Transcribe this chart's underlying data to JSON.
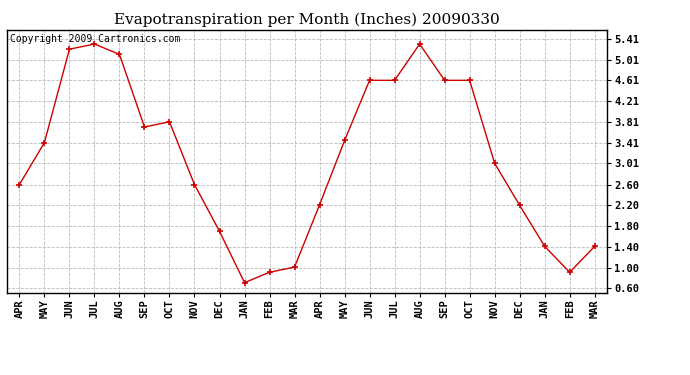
{
  "title": "Evapotranspiration per Month (Inches) 20090330",
  "copyright": "Copyright 2009 Cartronics.com",
  "months": [
    "APR",
    "MAY",
    "JUN",
    "JUL",
    "AUG",
    "SEP",
    "OCT",
    "NOV",
    "DEC",
    "JAN",
    "FEB",
    "MAR",
    "APR",
    "MAY",
    "JUN",
    "JUL",
    "AUG",
    "SEP",
    "OCT",
    "NOV",
    "DEC",
    "JAN",
    "FEB",
    "MAR"
  ],
  "values": [
    2.6,
    3.41,
    5.21,
    5.31,
    5.11,
    3.71,
    3.81,
    2.6,
    1.7,
    0.71,
    0.91,
    1.01,
    2.21,
    3.45,
    4.61,
    4.61,
    5.31,
    4.61,
    4.61,
    3.01,
    2.2,
    1.41,
    0.91,
    1.41
  ],
  "line_color": "#cc0000",
  "marker": "+",
  "marker_size": 4,
  "marker_linewidth": 1.2,
  "yticks": [
    0.6,
    1.0,
    1.4,
    1.8,
    2.2,
    2.6,
    3.01,
    3.41,
    3.81,
    4.21,
    4.61,
    5.01,
    5.41
  ],
  "ylim": [
    0.52,
    5.58
  ],
  "background_color": "#ffffff",
  "grid_color": "#bbbbbb",
  "title_fontsize": 11,
  "copyright_fontsize": 7,
  "tick_fontsize": 7.5
}
